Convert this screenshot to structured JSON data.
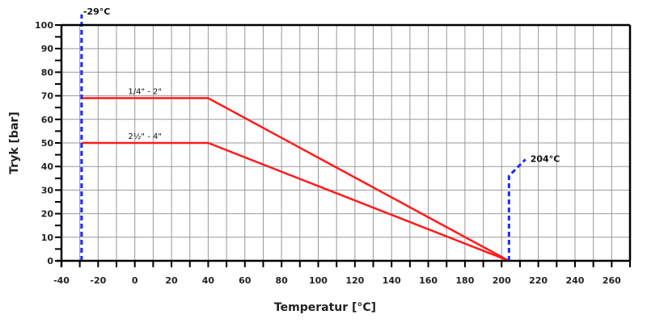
{
  "chart_data": {
    "type": "line",
    "xlabel": "Temperatur [°C]",
    "ylabel": "Tryk [bar]",
    "xlim": [
      -40,
      270
    ],
    "ylim": [
      0,
      100
    ],
    "xticks": [
      -40,
      -20,
      0,
      20,
      40,
      60,
      80,
      100,
      120,
      140,
      160,
      180,
      200,
      220,
      240,
      260
    ],
    "yticks": [
      0,
      10,
      20,
      30,
      40,
      50,
      60,
      70,
      80,
      90,
      100
    ],
    "grid": true,
    "series": [
      {
        "name": "1/4\" - 2\"",
        "color": "#ff1a1a",
        "points": [
          [
            -29,
            69
          ],
          [
            40,
            69
          ],
          [
            204,
            0
          ]
        ]
      },
      {
        "name": "2½\" - 4\"",
        "color": "#ff1a1a",
        "points": [
          [
            -29,
            50
          ],
          [
            40,
            50
          ],
          [
            204,
            0
          ]
        ]
      }
    ],
    "limits": [
      {
        "label": "-29°C",
        "color": "#1a2cff",
        "points": [
          [
            -29,
            0
          ],
          [
            -29,
            104.5
          ]
        ]
      },
      {
        "label": "204°C",
        "color": "#1a2cff",
        "points": [
          [
            204,
            0
          ],
          [
            204,
            36
          ],
          [
            213,
            43
          ]
        ]
      }
    ]
  }
}
